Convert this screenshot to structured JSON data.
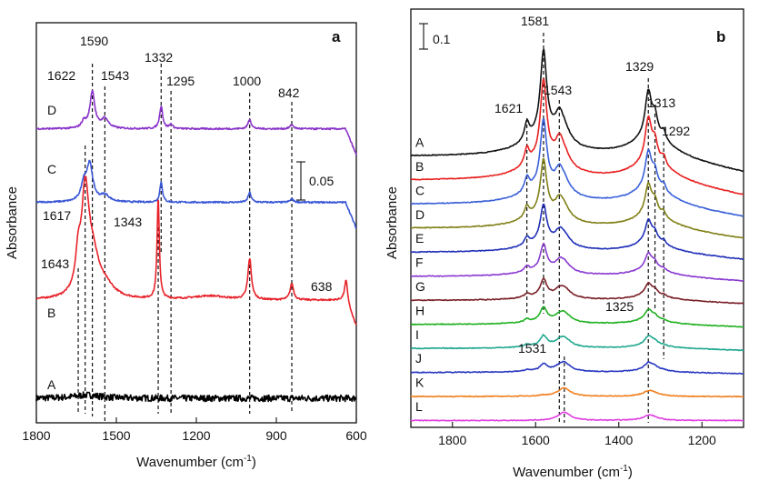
{
  "chart_data": [
    {
      "panel": "a",
      "type": "line",
      "xlabel": "Wavenumber (cm",
      "xlabel_sup": "-1",
      "xlabel_end": ")",
      "ylabel": "Absorbance",
      "xlim": [
        1800,
        600
      ],
      "x_ticks": [
        1800,
        1500,
        1200,
        900,
        600
      ],
      "scale_bar": {
        "label": "0.05",
        "value": 0.05
      },
      "ylim": [
        -0.03,
        0.46
      ],
      "series": [
        {
          "name": "A",
          "color": "#000000",
          "offset": 0.0,
          "noise": 0.004,
          "peaks": [
            [
              1610,
              0.004,
              60
            ]
          ]
        },
        {
          "name": "B",
          "color": "#e8222a",
          "offset": 0.12,
          "noise": 0.001,
          "peaks": [
            [
              1643,
              0.04,
              12
            ],
            [
              1617,
              0.115,
              16
            ],
            [
              1590,
              0.05,
              30
            ],
            [
              1540,
              0.012,
              40
            ],
            [
              1343,
              0.125,
              5
            ],
            [
              1000,
              0.05,
              8
            ],
            [
              842,
              0.02,
              8
            ],
            [
              638,
              0.025,
              7
            ],
            [
              1150,
              0.005,
              80
            ]
          ]
        },
        {
          "name": "C",
          "color": "#3a57d6",
          "offset": 0.24,
          "noise": 0.001,
          "peaks": [
            [
              1622,
              0.02,
              12
            ],
            [
              1600,
              0.045,
              14
            ],
            [
              1543,
              0.008,
              20
            ],
            [
              1332,
              0.025,
              6
            ],
            [
              1000,
              0.012,
              7
            ],
            [
              842,
              0.004,
              8
            ]
          ]
        },
        {
          "name": "D",
          "color": "#8a34c8",
          "offset": 0.33,
          "noise": 0.001,
          "peaks": [
            [
              1622,
              0.008,
              10
            ],
            [
              1590,
              0.045,
              11
            ],
            [
              1543,
              0.012,
              16
            ],
            [
              1332,
              0.028,
              7
            ],
            [
              1295,
              0.005,
              8
            ],
            [
              1000,
              0.012,
              7
            ],
            [
              842,
              0.005,
              8
            ]
          ]
        }
      ],
      "peak_labels": [
        "1590",
        "1622",
        "1543",
        "1332",
        "1295",
        "1000",
        "842",
        "1617",
        "1643",
        "1343",
        "638"
      ],
      "trace_labels": [
        "D",
        "C",
        "B",
        "A"
      ],
      "panel_tag": "a"
    },
    {
      "panel": "b",
      "type": "line",
      "xlabel": "Wavenumber (cm",
      "xlabel_sup": "-1",
      "xlabel_end": ")",
      "ylabel": "Absorbance",
      "xlim": [
        1900,
        1100
      ],
      "x_ticks": [
        1800,
        1600,
        1400,
        1200
      ],
      "scale_bar": {
        "label": "0.1",
        "value": 0.1
      },
      "ylim": [
        -0.01,
        0.6
      ],
      "series": [
        {
          "name": "L",
          "color": "#e040e0",
          "offset": 0.0,
          "amp": 0.0
        },
        {
          "name": "K",
          "color": "#f08020",
          "offset": 0.035,
          "amp": 0.01
        },
        {
          "name": "J",
          "color": "#2838c0",
          "offset": 0.07,
          "amp": 0.08
        },
        {
          "name": "I",
          "color": "#20a890",
          "offset": 0.105,
          "amp": 0.12
        },
        {
          "name": "H",
          "color": "#20b020",
          "offset": 0.14,
          "amp": 0.16
        },
        {
          "name": "G",
          "color": "#7a2028",
          "offset": 0.175,
          "amp": 0.2
        },
        {
          "name": "F",
          "color": "#8a3ad0",
          "offset": 0.21,
          "amp": 0.3
        },
        {
          "name": "E",
          "color": "#2030b8",
          "offset": 0.245,
          "amp": 0.45
        },
        {
          "name": "D",
          "color": "#808018",
          "offset": 0.28,
          "amp": 0.65
        },
        {
          "name": "C",
          "color": "#3a60d8",
          "offset": 0.315,
          "amp": 0.8
        },
        {
          "name": "B",
          "color": "#e82020",
          "offset": 0.35,
          "amp": 0.95
        },
        {
          "name": "A",
          "color": "#111111",
          "offset": 0.385,
          "amp": 1.0
        }
      ],
      "peak_labels": [
        "1581",
        "1621",
        "1543",
        "1329",
        "1313",
        "1292",
        "1325",
        "1531"
      ],
      "trace_labels": [
        "A",
        "B",
        "C",
        "D",
        "E",
        "F",
        "G",
        "H",
        "I",
        "J",
        "K",
        "L"
      ],
      "panel_tag": "b"
    }
  ]
}
